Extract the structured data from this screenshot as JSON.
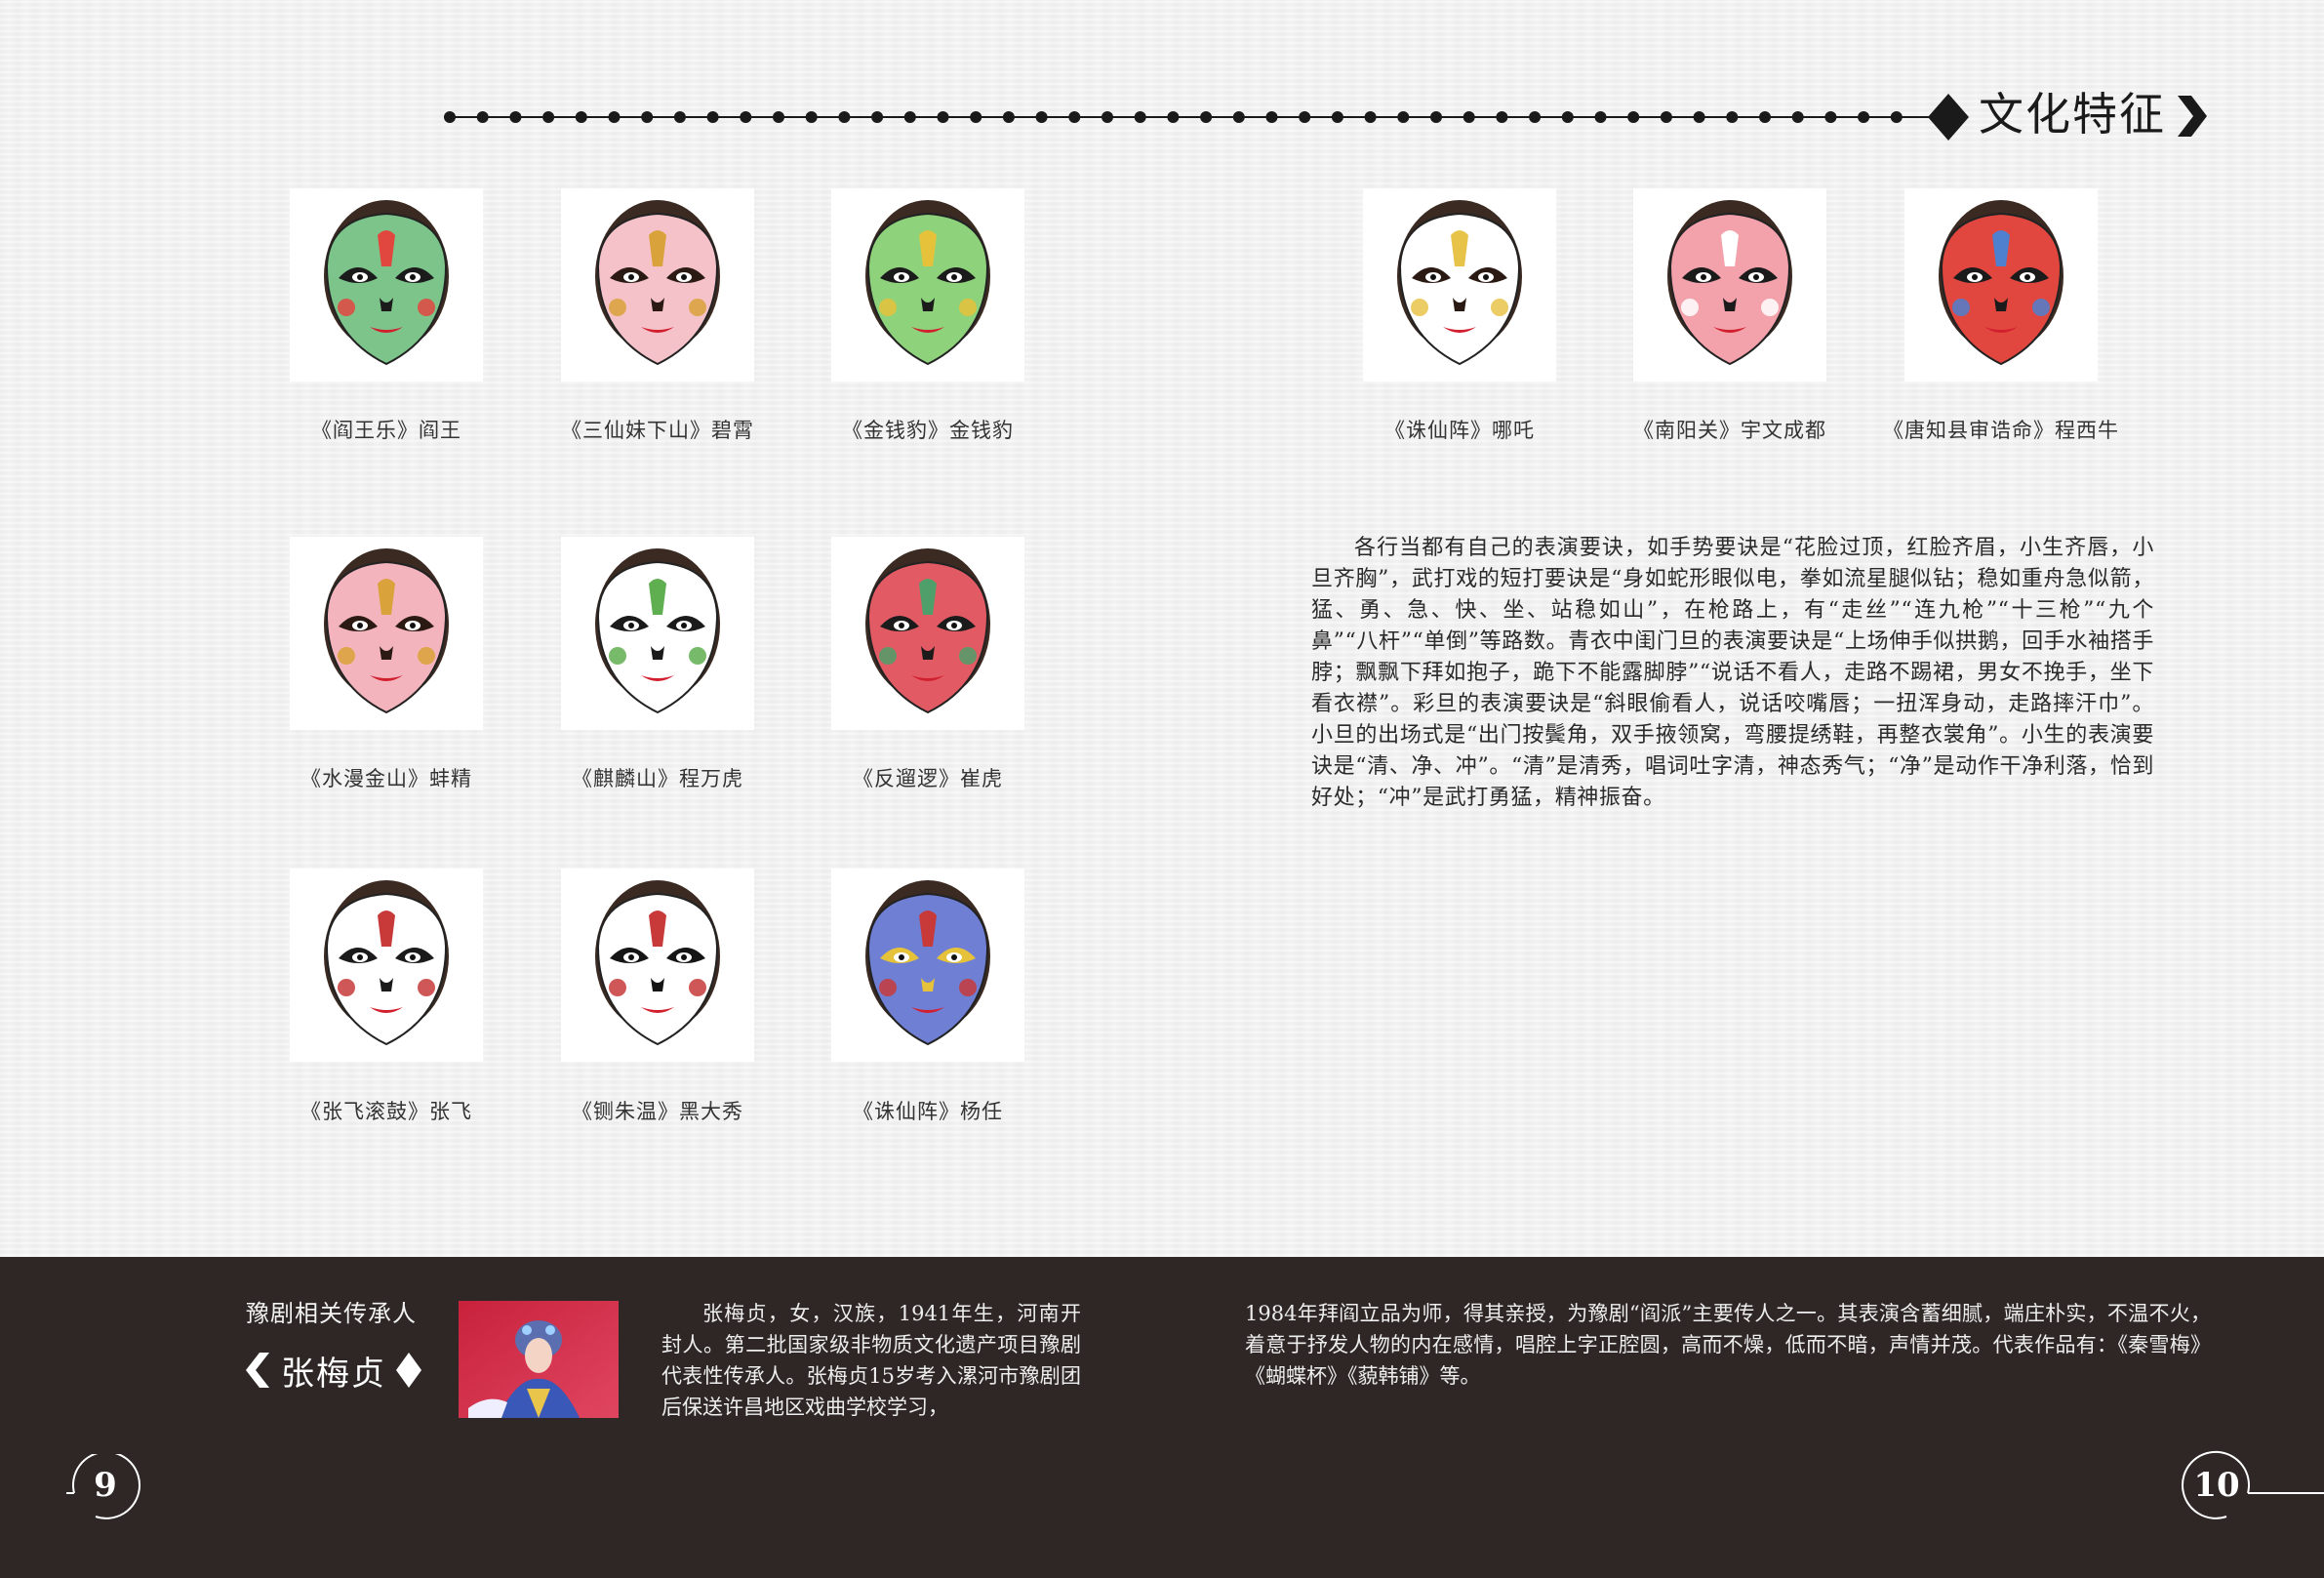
{
  "header": {
    "title": "文化特征"
  },
  "masks": [
    {
      "caption": "《阎王乐》阎王",
      "colors": [
        "#7cc48a",
        "#1b1b1b",
        "#e2473f"
      ]
    },
    {
      "caption": "《三仙妹下山》碧霄",
      "colors": [
        "#f6c2c9",
        "#2b1a14",
        "#d9a23a"
      ]
    },
    {
      "caption": "《金钱豹》金钱豹",
      "colors": [
        "#8ed27b",
        "#1b1b1b",
        "#e6c23a"
      ]
    },
    {
      "caption": "《水漫金山》蚌精",
      "colors": [
        "#f3b4bd",
        "#2b1a14",
        "#d9a23a"
      ]
    },
    {
      "caption": "《麒麟山》程万虎",
      "colors": [
        "#ffffff",
        "#1b1b1b",
        "#5fae4f"
      ]
    },
    {
      "caption": "《反遛逻》崔虎",
      "colors": [
        "#e25a63",
        "#1b1b1b",
        "#4f9f6a"
      ]
    },
    {
      "caption": "《张飞滚鼓》张飞",
      "colors": [
        "#ffffff",
        "#1b1b1b",
        "#c83a3a"
      ]
    },
    {
      "caption": "《铡朱温》黑大秀",
      "colors": [
        "#ffffff",
        "#151515",
        "#c83a3a"
      ]
    },
    {
      "caption": "《诛仙阵》杨任",
      "colors": [
        "#6f7fd4",
        "#e6c23a",
        "#c83a3a"
      ]
    },
    {
      "caption": "《诛仙阵》哪吒",
      "colors": [
        "#ffffff",
        "#2b1a14",
        "#e8c34a"
      ]
    },
    {
      "caption": "《南阳关》宇文成都",
      "colors": [
        "#f3a1ab",
        "#1b1b1b",
        "#ffffff"
      ]
    },
    {
      "caption": "《唐知县审诰命》程西牛",
      "colors": [
        "#e2473f",
        "#1b1b1b",
        "#4f7fcf"
      ]
    }
  ],
  "paragraph": "各行当都有自己的表演要诀，如手势要诀是“花脸过顶，红脸齐眉，小生齐唇，小旦齐胸”，武打戏的短打要诀是“身如蛇形眼似电，拳如流星腿似钻；稳如重舟急似箭，猛、勇、急、快、坐、站稳如山”，在枪路上，有“走丝”“连九枪”“十三枪”“九个鼻”“八杆”“单倒”等路数。青衣中闺门旦的表演要诀是“上场伸手似拱鹅，回手水袖搭手脖；飘飘下拜如抱子，跪下不能露脚脖”“说话不看人，走路不踢裙，男女不挽手，坐下看衣襟”。彩旦的表演要诀是“斜眼偷看人，说话咬嘴唇；一扭浑身动，走路摔汗巾”。小旦的出场式是“出门按鬓角，双手掖领窝，弯腰提绣鞋，再整衣裳角”。小生的表演要诀是“清、净、冲”。“清”是清秀，唱词吐字清，神态秀气；“净”是动作干净利落，恰到好处；“冲”是武打勇猛，精神振奋。",
  "band": {
    "label": "豫剧相关传承人",
    "name": "张梅贞",
    "bio_part1": "张梅贞，女，汉族，1941年生，河南开封人。第二批国家级非物质文化遗产项目豫剧代表性传承人。张梅贞15岁考入漯河市豫剧团后保送许昌地区戏曲学校学习，",
    "bio_part2": "1984年拜阎立品为师，得其亲授，为豫剧“阎派”主要传人之一。其表演含蓄细腻，端庄朴实，不温不火，着意于抒发人物的内在感情，唱腔上字正腔圆，高而不燥，低而不暗，声情并茂。代表作品有：《秦雪梅》《蝴蝶杯》《藐韩铺》等。"
  },
  "pages": {
    "left": "9",
    "right": "10"
  }
}
